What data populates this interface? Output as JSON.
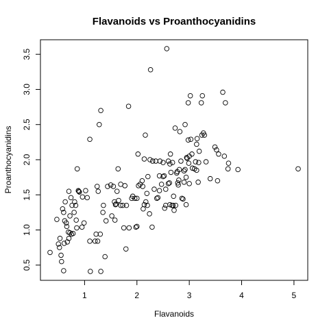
{
  "chart_data": {
    "type": "scatter",
    "title": "Flavanoids vs Proanthocyanidins",
    "xlabel": "Flavanoids",
    "ylabel": "Proanthocyanidins",
    "xlim": [
      0.34,
      5.08
    ],
    "ylim": [
      0.41,
      3.58
    ],
    "x_ticks": [
      1,
      2,
      3,
      4,
      5
    ],
    "y_ticks": [
      0.5,
      1.0,
      1.5,
      2.0,
      2.5,
      3.0,
      3.5
    ],
    "x_tick_labels": [
      "1",
      "2",
      "3",
      "4",
      "5"
    ],
    "y_tick_labels": [
      "0.5",
      "1.0",
      "1.5",
      "2.0",
      "2.5",
      "3.0",
      "3.5"
    ],
    "grid": false,
    "legend": "none",
    "points": [
      [
        0.34,
        0.68
      ],
      [
        0.47,
        1.15
      ],
      [
        0.5,
        0.8
      ],
      [
        0.52,
        0.75
      ],
      [
        0.53,
        0.88
      ],
      [
        0.55,
        0.64
      ],
      [
        0.56,
        0.55
      ],
      [
        0.58,
        1.3
      ],
      [
        0.6,
        0.42
      ],
      [
        0.6,
        1.25
      ],
      [
        0.61,
        0.81
      ],
      [
        0.62,
        1.13
      ],
      [
        0.63,
        1.4
      ],
      [
        0.65,
        1.1
      ],
      [
        0.66,
        1.05
      ],
      [
        0.67,
        0.83
      ],
      [
        0.69,
        0.97
      ],
      [
        0.7,
        1.55
      ],
      [
        0.7,
        0.88
      ],
      [
        0.72,
        0.96
      ],
      [
        0.72,
        1.2
      ],
      [
        0.74,
        1.46
      ],
      [
        0.75,
        0.94
      ],
      [
        0.76,
        1.35
      ],
      [
        0.78,
        0.95
      ],
      [
        0.8,
        1.25
      ],
      [
        0.81,
        1.4
      ],
      [
        0.83,
        1.35
      ],
      [
        0.84,
        1.14
      ],
      [
        0.85,
        1.03
      ],
      [
        0.86,
        1.87
      ],
      [
        0.88,
        1.56
      ],
      [
        0.89,
        1.55
      ],
      [
        0.9,
        1.54
      ],
      [
        0.95,
        1.04
      ],
      [
        0.96,
        1.47
      ],
      [
        0.99,
        1.1
      ],
      [
        1.02,
        1.56
      ],
      [
        1.05,
        1.46
      ],
      [
        1.1,
        0.84
      ],
      [
        1.1,
        2.29
      ],
      [
        1.11,
        0.41
      ],
      [
        1.2,
        0.84
      ],
      [
        1.22,
        0.94
      ],
      [
        1.24,
        1.62
      ],
      [
        1.25,
        0.84
      ],
      [
        1.26,
        1.55
      ],
      [
        1.28,
        2.5
      ],
      [
        1.3,
        0.94
      ],
      [
        1.31,
        0.41
      ],
      [
        1.31,
        2.7
      ],
      [
        1.35,
        1.25
      ],
      [
        1.36,
        1.35
      ],
      [
        1.39,
        0.62
      ],
      [
        1.41,
        1.13
      ],
      [
        1.44,
        1.62
      ],
      [
        1.5,
        1.64
      ],
      [
        1.52,
        1.2
      ],
      [
        1.55,
        1.62
      ],
      [
        1.57,
        1.4
      ],
      [
        1.58,
        1.14
      ],
      [
        1.59,
        1.36
      ],
      [
        1.6,
        1.37
      ],
      [
        1.62,
        1.55
      ],
      [
        1.64,
        1.87
      ],
      [
        1.65,
        1.42
      ],
      [
        1.69,
        1.35
      ],
      [
        1.69,
        1.65
      ],
      [
        1.73,
        1.35
      ],
      [
        1.75,
        1.03
      ],
      [
        1.77,
        1.63
      ],
      [
        1.79,
        0.73
      ],
      [
        1.8,
        1.35
      ],
      [
        1.84,
        2.76
      ],
      [
        1.85,
        1.03
      ],
      [
        1.9,
        1.45
      ],
      [
        1.92,
        1.48
      ],
      [
        1.96,
        1.45
      ],
      [
        1.98,
        1.04
      ],
      [
        2.0,
        1.05
      ],
      [
        2.0,
        1.45
      ],
      [
        2.02,
        2.08
      ],
      [
        2.03,
        1.63
      ],
      [
        2.06,
        1.65
      ],
      [
        2.1,
        1.7
      ],
      [
        2.11,
        1.62
      ],
      [
        2.12,
        1.3
      ],
      [
        2.14,
        1.36
      ],
      [
        2.14,
        2.01
      ],
      [
        2.16,
        2.35
      ],
      [
        2.17,
        1.4
      ],
      [
        2.19,
        1.52
      ],
      [
        2.2,
        1.35
      ],
      [
        2.21,
        1.76
      ],
      [
        2.24,
        1.23
      ],
      [
        2.25,
        2.0
      ],
      [
        2.26,
        3.28
      ],
      [
        2.29,
        1.04
      ],
      [
        2.3,
        1.98
      ],
      [
        2.33,
        1.58
      ],
      [
        2.36,
        1.98
      ],
      [
        2.38,
        1.45
      ],
      [
        2.4,
        1.46
      ],
      [
        2.43,
        1.56
      ],
      [
        2.43,
        1.77
      ],
      [
        2.44,
        1.98
      ],
      [
        2.47,
        1.65
      ],
      [
        2.5,
        1.96
      ],
      [
        2.5,
        1.76
      ],
      [
        2.52,
        1.77
      ],
      [
        2.53,
        1.31
      ],
      [
        2.55,
        1.58
      ],
      [
        2.55,
        1.35
      ],
      [
        2.57,
        3.58
      ],
      [
        2.6,
        1.66
      ],
      [
        2.6,
        1.98
      ],
      [
        2.62,
        1.67
      ],
      [
        2.63,
        1.94
      ],
      [
        2.63,
        1.36
      ],
      [
        2.64,
        2.08
      ],
      [
        2.65,
        1.82
      ],
      [
        2.67,
        1.35
      ],
      [
        2.68,
        1.96
      ],
      [
        2.69,
        1.35
      ],
      [
        2.7,
        1.48
      ],
      [
        2.71,
        1.28
      ],
      [
        2.73,
        2.45
      ],
      [
        2.74,
        1.35
      ],
      [
        2.76,
        1.81
      ],
      [
        2.77,
        1.83
      ],
      [
        2.78,
        1.67
      ],
      [
        2.79,
        1.64
      ],
      [
        2.8,
        1.71
      ],
      [
        2.81,
        1.86
      ],
      [
        2.82,
        2.4
      ],
      [
        2.84,
        1.98
      ],
      [
        2.86,
        1.45
      ],
      [
        2.88,
        1.44
      ],
      [
        2.9,
        1.68
      ],
      [
        2.9,
        1.84
      ],
      [
        2.92,
        2.5
      ],
      [
        2.92,
        1.86
      ],
      [
        2.94,
        1.75
      ],
      [
        2.94,
        1.36
      ],
      [
        2.95,
        2.03
      ],
      [
        2.96,
        2.02
      ],
      [
        2.98,
        2.28
      ],
      [
        2.98,
        2.81
      ],
      [
        2.99,
        1.95
      ],
      [
        3.0,
        2.05
      ],
      [
        3.0,
        1.66
      ],
      [
        3.02,
        2.91
      ],
      [
        3.03,
        2.29
      ],
      [
        3.05,
        2.08
      ],
      [
        3.06,
        1.88
      ],
      [
        3.1,
        1.87
      ],
      [
        3.12,
        1.97
      ],
      [
        3.14,
        2.22
      ],
      [
        3.14,
        1.85
      ],
      [
        3.15,
        2.3
      ],
      [
        3.17,
        1.68
      ],
      [
        3.18,
        1.96
      ],
      [
        3.19,
        2.12
      ],
      [
        3.23,
        2.81
      ],
      [
        3.24,
        2.35
      ],
      [
        3.25,
        2.91
      ],
      [
        3.27,
        2.38
      ],
      [
        3.29,
        2.35
      ],
      [
        3.32,
        1.97
      ],
      [
        3.4,
        1.73
      ],
      [
        3.49,
        2.18
      ],
      [
        3.52,
        2.14
      ],
      [
        3.54,
        1.7
      ],
      [
        3.56,
        2.08
      ],
      [
        3.64,
        2.96
      ],
      [
        3.67,
        2.05
      ],
      [
        3.69,
        2.81
      ],
      [
        3.74,
        1.87
      ],
      [
        3.75,
        1.95
      ],
      [
        3.93,
        1.86
      ],
      [
        5.08,
        1.87
      ]
    ]
  }
}
